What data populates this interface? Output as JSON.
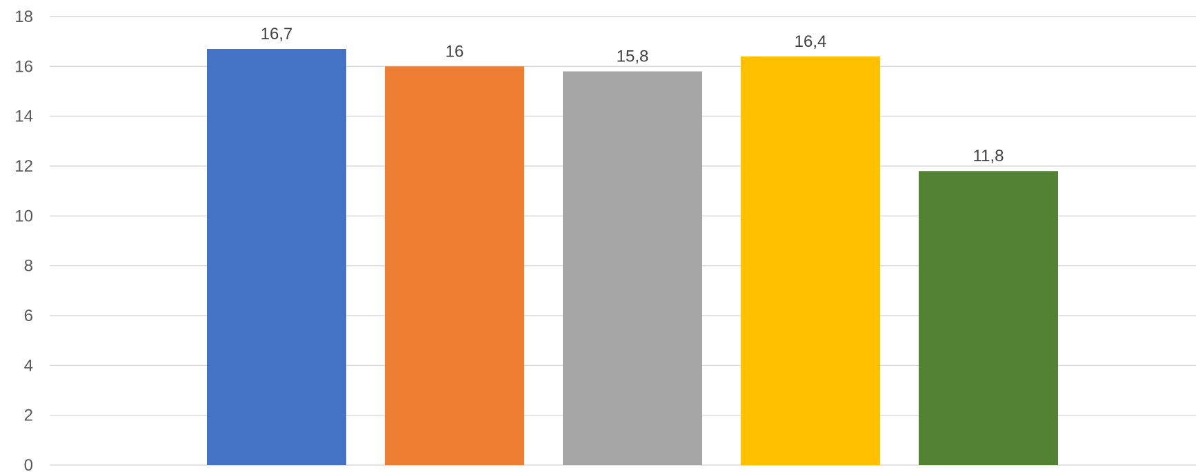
{
  "chart_data": {
    "type": "bar",
    "title": "",
    "xlabel": "",
    "ylabel": "",
    "ylim": [
      0,
      18
    ],
    "yticks": [
      0,
      2,
      4,
      6,
      8,
      10,
      12,
      14,
      16,
      18
    ],
    "grid": true,
    "legend": "none",
    "decimal_separator": ",",
    "bars": [
      {
        "value": 16.7,
        "label": "16,7",
        "color": "#4472C4"
      },
      {
        "value": 16.0,
        "label": "16",
        "color": "#ED7D31"
      },
      {
        "value": 15.8,
        "label": "15,8",
        "color": "#A5A5A5"
      },
      {
        "value": 16.4,
        "label": "16,4",
        "color": "#FFC000"
      },
      {
        "value": 11.8,
        "label": "11,8",
        "color": "#548235"
      }
    ]
  }
}
